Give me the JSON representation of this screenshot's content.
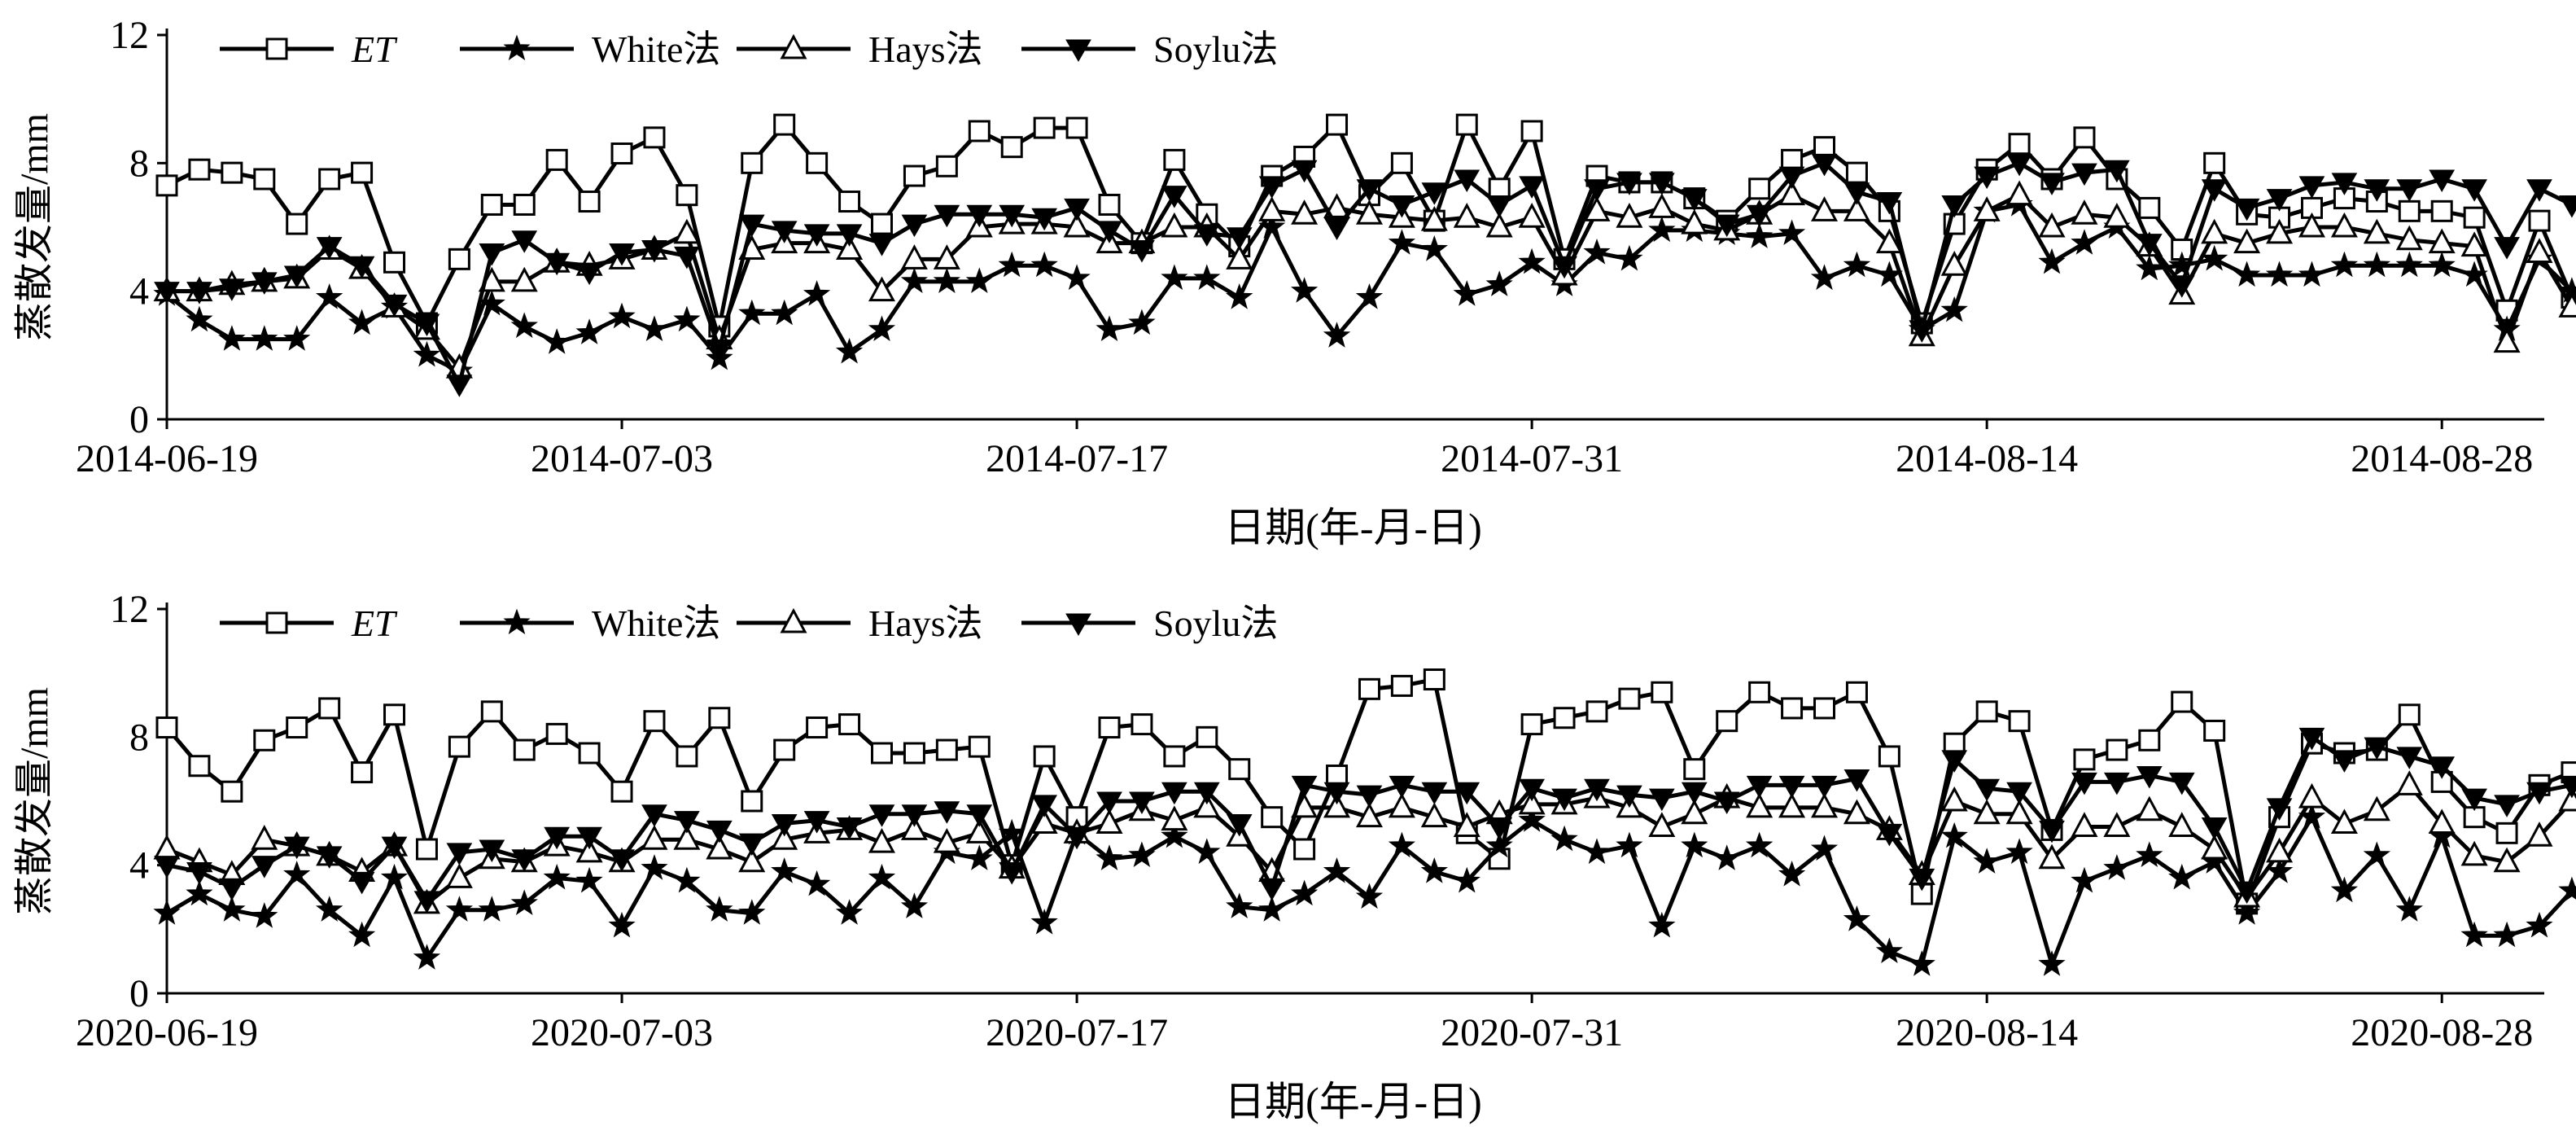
{
  "chart_data": [
    {
      "type": "line",
      "title": "",
      "xlabel": "日期(年-月-日)",
      "ylabel": "蒸散发量/mm",
      "ylim": [
        0,
        12
      ],
      "yticks": [
        0,
        4,
        8,
        12
      ],
      "x_start": "2014-06-19",
      "x_end": "2014-08-31",
      "xtick_labels": [
        "2014-06-19",
        "2014-07-03",
        "2014-07-17",
        "2014-07-31",
        "2014-08-14",
        "2014-08-28"
      ],
      "legend_position": "top-left",
      "grid": false,
      "series": [
        {
          "name": "ET",
          "marker": "square-open",
          "values": [
            7.3,
            7.8,
            7.7,
            7.5,
            6.1,
            7.5,
            7.7,
            4.9,
            3.0,
            5.0,
            6.7,
            6.7,
            8.1,
            6.8,
            8.3,
            8.8,
            7.0,
            2.9,
            8.0,
            9.2,
            8.0,
            6.8,
            6.1,
            7.6,
            7.9,
            9.0,
            8.5,
            9.1,
            9.1,
            6.7,
            5.5,
            8.1,
            6.4,
            5.4,
            7.6,
            8.2,
            9.2,
            7.0,
            8.0,
            6.2,
            9.2,
            7.2,
            9.0,
            5.0,
            7.6,
            7.4,
            7.4,
            6.9,
            6.2,
            7.2,
            8.1,
            8.5,
            7.7,
            6.5,
            3.0,
            6.1,
            7.8,
            8.6,
            7.5,
            8.8,
            7.5,
            6.6,
            5.3,
            8.0,
            6.4,
            6.3,
            6.6,
            6.9,
            6.8,
            6.5,
            6.5,
            6.3,
            3.4,
            6.2,
            3.8
          ]
        },
        {
          "name": "White法",
          "marker": "star",
          "values": [
            3.9,
            3.1,
            2.5,
            2.5,
            2.5,
            3.8,
            3.0,
            3.5,
            2.0,
            1.5,
            3.6,
            2.9,
            2.4,
            2.7,
            3.2,
            2.8,
            3.1,
            1.9,
            3.3,
            3.3,
            3.9,
            2.1,
            2.8,
            4.3,
            4.3,
            4.3,
            4.8,
            4.8,
            4.4,
            2.8,
            3.0,
            4.4,
            4.4,
            3.8,
            6.0,
            4.0,
            2.6,
            3.8,
            5.5,
            5.3,
            3.9,
            4.2,
            4.9,
            4.2,
            5.2,
            5.0,
            5.9,
            5.9,
            5.8,
            5.7,
            5.8,
            4.4,
            4.8,
            4.5,
            2.8,
            3.4,
            6.5,
            6.7,
            4.9,
            5.5,
            6.0,
            4.7,
            4.8,
            5.0,
            4.5,
            4.5,
            4.5,
            4.8,
            4.8,
            4.8,
            4.8,
            4.5,
            2.8,
            5.0,
            4.0
          ]
        },
        {
          "name": "Hays法",
          "marker": "triangle-open",
          "values": [
            4.0,
            4.0,
            4.2,
            4.3,
            4.4,
            5.3,
            4.7,
            3.5,
            2.8,
            1.6,
            4.3,
            4.3,
            4.9,
            4.8,
            5.0,
            5.3,
            5.8,
            2.5,
            5.3,
            5.5,
            5.5,
            5.3,
            4.0,
            5.0,
            5.0,
            6.0,
            6.1,
            6.1,
            6.0,
            5.5,
            5.5,
            6.0,
            6.0,
            5.0,
            6.5,
            6.4,
            6.6,
            6.4,
            6.3,
            6.2,
            6.3,
            6.0,
            6.3,
            4.5,
            6.5,
            6.3,
            6.6,
            6.1,
            5.9,
            6.4,
            7.0,
            6.5,
            6.5,
            5.5,
            2.6,
            4.8,
            6.5,
            7.0,
            6.0,
            6.4,
            6.3,
            5.4,
            3.9,
            5.8,
            5.5,
            5.8,
            6.0,
            6.0,
            5.8,
            5.6,
            5.5,
            5.4,
            2.4,
            5.2,
            3.5
          ]
        },
        {
          "name": "Soylu法",
          "marker": "triangle-down-filled",
          "values": [
            4.0,
            4.0,
            4.1,
            4.3,
            4.5,
            5.4,
            4.8,
            3.6,
            3.0,
            1.1,
            5.2,
            5.6,
            4.9,
            4.6,
            5.2,
            5.3,
            5.1,
            2.2,
            6.1,
            5.9,
            5.8,
            5.8,
            5.5,
            6.1,
            6.4,
            6.4,
            6.4,
            6.3,
            6.6,
            5.9,
            5.3,
            7.0,
            5.8,
            5.7,
            7.3,
            7.8,
            6.0,
            7.2,
            6.7,
            7.1,
            7.5,
            6.7,
            7.3,
            4.8,
            7.2,
            7.4,
            7.4,
            6.9,
            6.1,
            6.4,
            7.6,
            8.0,
            7.1,
            6.8,
            2.8,
            6.7,
            7.6,
            8.0,
            7.4,
            7.7,
            7.8,
            5.5,
            4.2,
            7.2,
            6.6,
            6.9,
            7.3,
            7.4,
            7.2,
            7.2,
            7.5,
            7.2,
            5.4,
            7.2,
            6.7
          ]
        }
      ]
    },
    {
      "type": "line",
      "title": "",
      "xlabel": "日期(年-月-日)",
      "ylabel": "蒸散发量/mm",
      "ylim": [
        0,
        12
      ],
      "yticks": [
        0,
        4,
        8,
        12
      ],
      "x_start": "2020-06-19",
      "x_end": "2020-08-31",
      "xtick_labels": [
        "2020-06-19",
        "2020-07-03",
        "2020-07-17",
        "2020-07-31",
        "2020-08-14",
        "2020-08-28"
      ],
      "legend_position": "top-left",
      "grid": false,
      "series": [
        {
          "name": "ET",
          "marker": "square-open",
          "values": [
            8.3,
            7.1,
            6.3,
            7.9,
            8.3,
            8.9,
            6.9,
            8.7,
            4.5,
            7.7,
            8.8,
            7.6,
            8.1,
            7.5,
            6.3,
            8.5,
            7.4,
            8.6,
            6.0,
            7.6,
            8.3,
            8.4,
            7.5,
            7.5,
            7.6,
            7.7,
            4.0,
            7.4,
            5.5,
            8.3,
            8.4,
            7.4,
            8.0,
            7.0,
            5.5,
            4.5,
            6.8,
            9.5,
            9.6,
            9.8,
            5.0,
            4.2,
            8.4,
            8.6,
            8.8,
            9.2,
            9.4,
            7.0,
            8.5,
            9.4,
            8.9,
            8.9,
            9.4,
            7.4,
            3.1,
            7.8,
            8.8,
            8.5,
            5.1,
            7.3,
            7.6,
            7.9,
            9.1,
            8.2,
            2.8,
            5.5,
            7.8,
            7.5,
            7.6,
            8.7,
            6.6,
            5.5,
            5.0,
            6.5,
            6.9
          ]
        },
        {
          "name": "White法",
          "marker": "star",
          "values": [
            2.5,
            3.1,
            2.6,
            2.4,
            3.7,
            2.6,
            1.8,
            3.6,
            1.1,
            2.6,
            2.6,
            2.8,
            3.6,
            3.5,
            2.1,
            3.9,
            3.5,
            2.6,
            2.5,
            3.8,
            3.4,
            2.5,
            3.6,
            2.7,
            4.4,
            4.2,
            5.0,
            2.2,
            5.0,
            4.2,
            4.3,
            4.9,
            4.4,
            2.7,
            2.6,
            3.1,
            3.8,
            3.0,
            4.6,
            3.8,
            3.5,
            4.6,
            5.4,
            4.8,
            4.4,
            4.6,
            2.1,
            4.6,
            4.2,
            4.6,
            3.7,
            4.5,
            2.3,
            1.3,
            0.9,
            4.9,
            4.1,
            4.4,
            0.9,
            3.5,
            3.9,
            4.3,
            3.6,
            4.1,
            2.5,
            3.8,
            5.5,
            3.2,
            4.3,
            2.6,
            4.9,
            1.8,
            1.8,
            2.1,
            3.2
          ]
        },
        {
          "name": "Hays法",
          "marker": "triangle-open",
          "values": [
            4.5,
            4.1,
            3.7,
            4.8,
            4.6,
            4.3,
            3.8,
            4.6,
            2.8,
            3.6,
            4.2,
            4.1,
            4.6,
            4.4,
            4.1,
            4.8,
            4.8,
            4.5,
            4.1,
            4.8,
            5.0,
            5.1,
            4.7,
            5.1,
            4.7,
            5.0,
            3.9,
            5.3,
            5.0,
            5.3,
            5.7,
            5.4,
            5.8,
            4.9,
            3.8,
            5.8,
            5.8,
            5.5,
            5.8,
            5.5,
            5.2,
            5.6,
            5.9,
            5.9,
            6.1,
            5.8,
            5.2,
            5.6,
            6.1,
            5.8,
            5.8,
            5.8,
            5.6,
            5.1,
            3.7,
            6.0,
            5.6,
            5.6,
            4.2,
            5.2,
            5.2,
            5.7,
            5.2,
            4.5,
            3.0,
            4.4,
            6.1,
            5.3,
            5.7,
            6.5,
            5.3,
            4.3,
            4.1,
            4.9,
            6.0
          ]
        },
        {
          "name": "Soylu法",
          "marker": "triangle-down-filled",
          "values": [
            4.0,
            3.8,
            3.3,
            4.0,
            4.6,
            4.3,
            3.5,
            4.6,
            2.9,
            4.4,
            4.5,
            4.2,
            4.9,
            4.9,
            4.2,
            5.6,
            5.4,
            5.1,
            4.7,
            5.3,
            5.4,
            5.2,
            5.6,
            5.6,
            5.7,
            5.6,
            3.8,
            5.9,
            4.9,
            6.0,
            6.0,
            6.3,
            6.3,
            5.3,
            3.3,
            6.5,
            6.3,
            6.2,
            6.5,
            6.3,
            6.3,
            5.2,
            6.4,
            6.1,
            6.4,
            6.2,
            6.1,
            6.3,
            6.0,
            6.5,
            6.5,
            6.5,
            6.7,
            5.0,
            3.6,
            7.3,
            6.4,
            6.3,
            5.1,
            6.6,
            6.6,
            6.8,
            6.6,
            5.2,
            3.2,
            5.8,
            8.0,
            7.3,
            7.7,
            7.4,
            7.1,
            6.1,
            5.9,
            6.3,
            6.5
          ]
        }
      ]
    }
  ]
}
